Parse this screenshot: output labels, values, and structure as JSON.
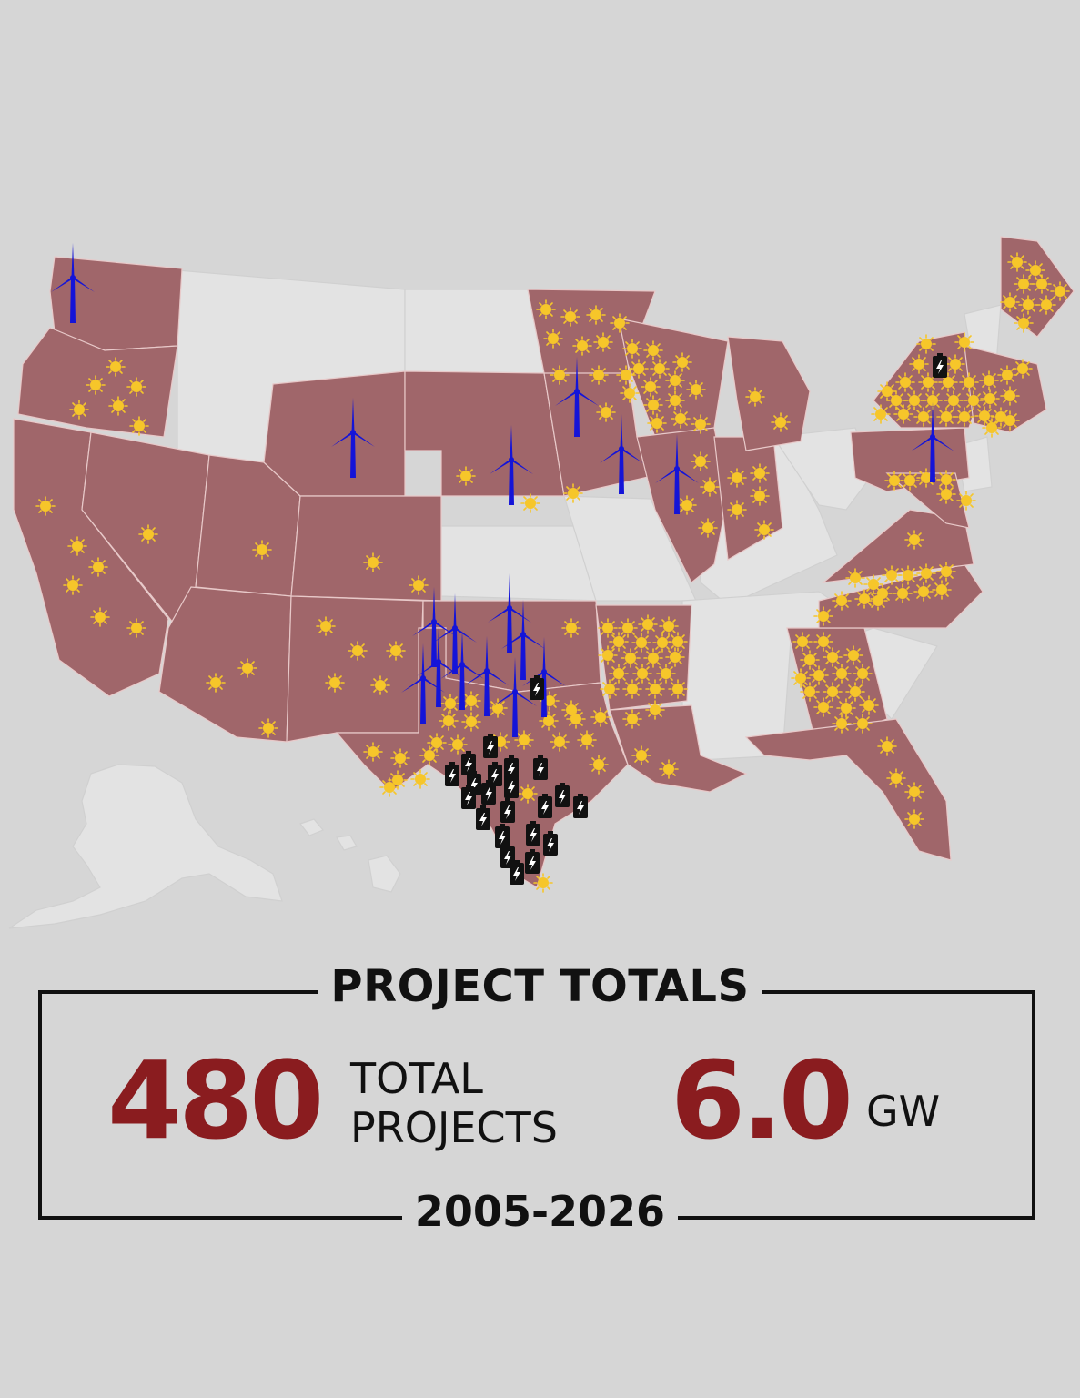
{
  "colors": {
    "background": "#d6d6d6",
    "state_with_projects": "#a0666a",
    "state_without_projects": "#e3e3e3",
    "solar": "#f6c62a",
    "wind": "#1414d8",
    "storage": "#111111",
    "accent_number": "#8a1c1f"
  },
  "legend_icons": [
    "solar-icon",
    "wind-turbine-icon",
    "battery-storage-icon"
  ],
  "totals": {
    "title": "PROJECT TOTALS",
    "projects_number": "480",
    "projects_label_line1": "TOTAL",
    "projects_label_line2": "PROJECTS",
    "capacity_number": "6.0",
    "capacity_unit": "GW",
    "years": "2005-2026"
  }
}
